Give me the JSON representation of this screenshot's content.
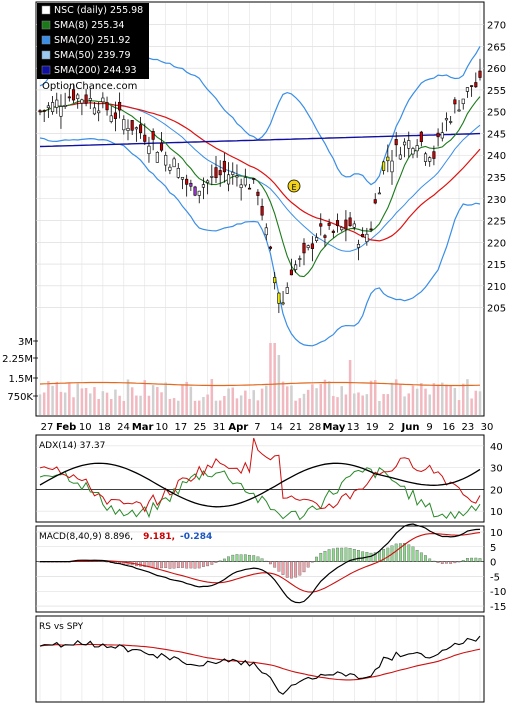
{
  "chart_data": [
    {
      "type": "candlestick",
      "panel": "price",
      "legend": [
        {
          "label": "NSC (daily) 255.98",
          "color": "#ffffff"
        },
        {
          "label": "SMA(8) 255.34",
          "color": "#1a7a1a"
        },
        {
          "label": "SMA(20) 251.92",
          "color": "#3a8ee6"
        },
        {
          "label": "SMA(50) 239.79",
          "color": "#9ac9f2"
        },
        {
          "label": "SMA(200) 244.93",
          "color": "#1010a0"
        }
      ],
      "watermark": "OptionChance.com",
      "marker_label": "E",
      "y_ticks": [
        205,
        210,
        215,
        220,
        225,
        230,
        235,
        240,
        245,
        250,
        255,
        260,
        265,
        270
      ],
      "ylim": [
        198,
        272
      ],
      "colors": {
        "up": "#ffffff",
        "down": "#cc0000",
        "purple": "#9933cc",
        "yellow": "#eeee00",
        "bb": "#3a8ee6",
        "sma8": "#1a7a1a",
        "sma50": "#dd1111",
        "sma200": "#1010a0"
      }
    },
    {
      "type": "bar",
      "panel": "volume",
      "y_ticks": [
        "3M",
        "2.25M",
        "1.5M",
        "750K"
      ],
      "x_labels": [
        "27",
        "Feb",
        "10",
        "18",
        "24",
        "Mar",
        "10",
        "17",
        "25",
        "31",
        "Apr",
        "7",
        "14",
        "21",
        "28",
        "May",
        "13",
        "19",
        "2",
        "Jun",
        "9",
        "16",
        "23",
        "30"
      ],
      "colors": {
        "bar": "#f2b8c0",
        "avg": "#e06a20"
      }
    },
    {
      "type": "line",
      "panel": "adx",
      "label": "ADX(14) 37.37",
      "y_ticks": [
        40,
        30,
        20,
        10
      ],
      "ylim": [
        5,
        45
      ],
      "colors": {
        "adx": "#000000",
        "plus_di": "#2a8a2a",
        "minus_di": "#cc1111"
      }
    },
    {
      "type": "line",
      "panel": "macd",
      "label": "MACD(8,40,9) 8.896,",
      "value_1": "9.181,",
      "value_2": "-0.284",
      "y_ticks": [
        10,
        5,
        0,
        -5,
        -10,
        -15
      ],
      "ylim": [
        -17,
        12
      ],
      "colors": {
        "macd": "#000000",
        "signal": "#cc1111",
        "value_1": "#cc0000",
        "value_2": "#1a55c0",
        "hist_up": "#90d890",
        "hist_down": "#f0a0a8"
      }
    },
    {
      "type": "line",
      "panel": "rs",
      "label": "RS vs SPY",
      "colors": {
        "rs": "#000000",
        "avg": "#cc1111"
      }
    }
  ]
}
